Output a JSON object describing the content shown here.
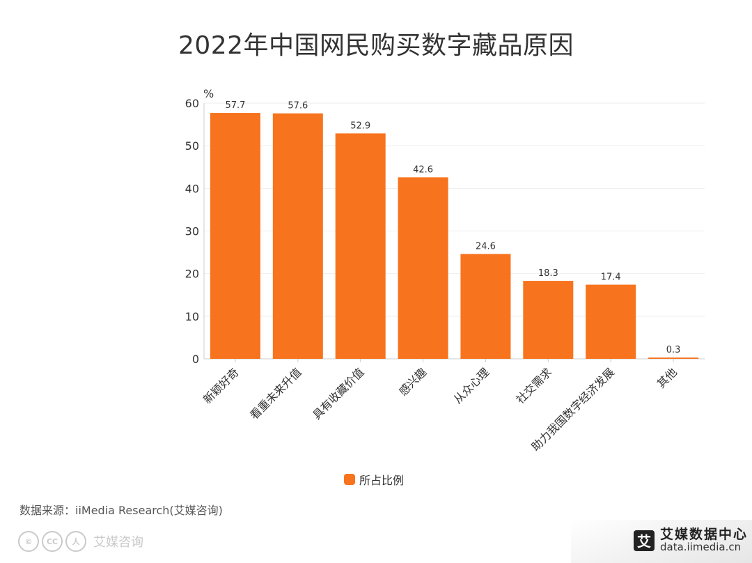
{
  "title": "2022年中国网民购买数字藏品原因",
  "chart_data": {
    "type": "bar",
    "title": "2022年中国网民购买数字藏品原因",
    "ylabel": "%",
    "xlabel": "",
    "ylim": [
      0,
      60
    ],
    "yticks": [
      0,
      10,
      20,
      30,
      40,
      50,
      60
    ],
    "categories": [
      "新颖好奇",
      "看重未来升值",
      "具有收藏价值",
      "感兴趣",
      "从众心理",
      "社交需求",
      "助力我国数字经济发展",
      "其他"
    ],
    "series": [
      {
        "name": "所占比例",
        "values": [
          57.7,
          57.6,
          52.9,
          42.6,
          24.6,
          18.3,
          17.4,
          0.3
        ],
        "color": "#F8731D"
      }
    ],
    "data_labels": [
      "57.7",
      "57.6",
      "52.9",
      "42.6",
      "24.6",
      "18.3",
      "17.4",
      "0.3"
    ]
  },
  "legend": {
    "label": "所占比例",
    "color": "#F8731D"
  },
  "source": "数据来源：iiMedia Research(艾媒咨询)",
  "watermark": {
    "icons": [
      "©",
      "CC",
      "人"
    ],
    "text": "艾媒咨询"
  },
  "brand": {
    "logo": "艾",
    "name": "艾媒数据中心",
    "url": "data.iimedia.cn"
  }
}
